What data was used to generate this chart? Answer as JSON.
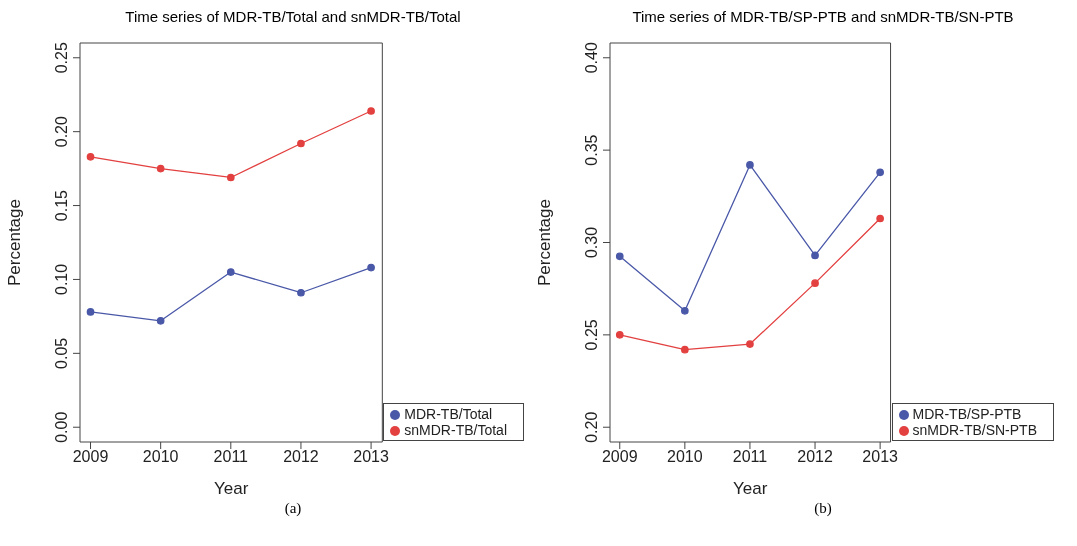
{
  "chart_data": [
    {
      "type": "line",
      "title": "Time series of MDR-TB/Total and snMDR-TB/Total",
      "xlabel": "Year",
      "ylabel": "Percentage",
      "x": [
        2009,
        2010,
        2011,
        2012,
        2013
      ],
      "xlim": [
        2008.85,
        2013.16
      ],
      "xticks": [
        2009,
        2010,
        2011,
        2012,
        2013
      ],
      "ylim": [
        -0.01,
        0.26
      ],
      "yticks": [
        {
          "value": 0,
          "label": "0.00"
        },
        {
          "value": 0.05,
          "label": "0.05"
        },
        {
          "value": 0.1,
          "label": "0.10"
        },
        {
          "value": 0.15,
          "label": "0.15"
        },
        {
          "value": 0.2,
          "label": "0.20"
        },
        {
          "value": 0.25,
          "label": "0.25"
        }
      ],
      "grid": false,
      "legend": "bottom right",
      "marker": "circle",
      "line_style": "solid",
      "annotations": [
        "(a)"
      ],
      "series": [
        {
          "name": "MDR-TB/Total",
          "color": "#4a58a8",
          "values": [
            0.078,
            0.072,
            0.105,
            0.091,
            0.108
          ]
        },
        {
          "name": "snMDR-TB/Total",
          "color": "#e34040",
          "values": [
            0.183,
            0.175,
            0.169,
            0.192,
            0.214
          ]
        }
      ]
    },
    {
      "type": "line",
      "title": "Time series of MDR-TB/SP-PTB and snMDR-TB/SN-PTB",
      "xlabel": "Year",
      "ylabel": "Percentage",
      "x": [
        2009,
        2010,
        2011,
        2012,
        2013
      ],
      "xlim": [
        2008.85,
        2013.16
      ],
      "xticks": [
        2009,
        2010,
        2011,
        2012,
        2013
      ],
      "ylim": [
        0.192,
        0.408
      ],
      "yticks": [
        {
          "value": 0.2,
          "label": "0.20"
        },
        {
          "value": 0.25,
          "label": "0.25"
        },
        {
          "value": 0.3,
          "label": "0.30"
        },
        {
          "value": 0.35,
          "label": "0.35"
        },
        {
          "value": 0.4,
          "label": "0.40"
        }
      ],
      "grid": false,
      "legend": "bottom right",
      "marker": "circle",
      "line_style": "solid",
      "annotations": [
        "(b)"
      ],
      "series": [
        {
          "name": "MDR-TB/SP-PTB",
          "color": "#4a58a8",
          "values": [
            0.2925,
            0.263,
            0.342,
            0.293,
            0.338
          ]
        },
        {
          "name": "snMDR-TB/SN-PTB",
          "color": "#e34040",
          "values": [
            0.25,
            0.242,
            0.245,
            0.278,
            0.313
          ]
        }
      ]
    }
  ]
}
